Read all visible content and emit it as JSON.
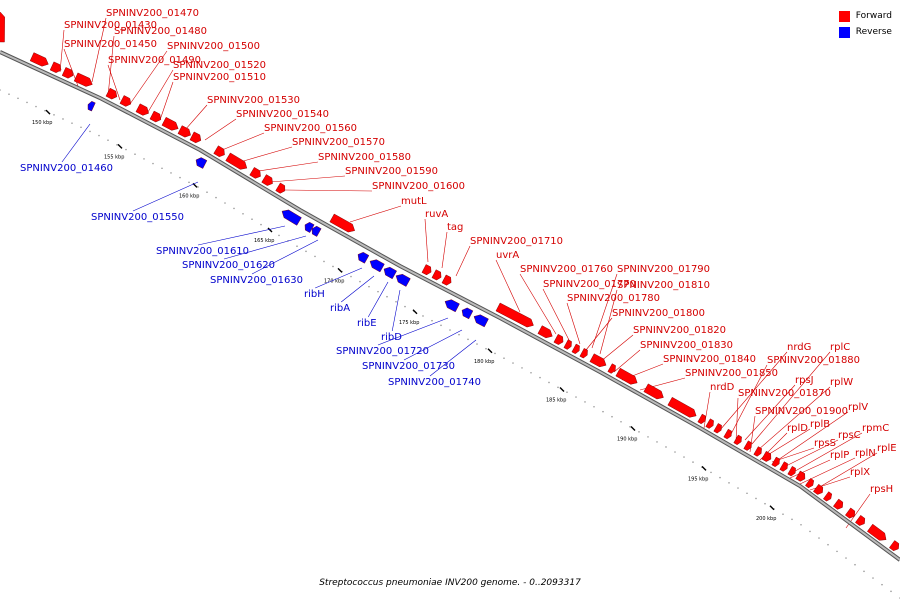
{
  "legend": {
    "forward_label": "Forward",
    "reverse_label": "Reverse",
    "forward_color": "#ff0000",
    "reverse_color": "#0000ff"
  },
  "caption": "Streptococcus pneumoniae INV200 genome. - 0..2093317",
  "colors": {
    "forward": "#ff0000",
    "forward_label": "#d40000",
    "reverse": "#0000ff",
    "reverse_label": "#0000cc",
    "backbone": "#808080",
    "axis": "#999999"
  },
  "ticks": [
    "150 kbp",
    "155 kbp",
    "160 kbp",
    "165 kbp",
    "170 kbp",
    "175 kbp",
    "180 kbp",
    "185 kbp",
    "190 kbp",
    "195 kbp",
    "200 kbp"
  ],
  "forward_genes": [
    "SPNINV200_01430",
    "SPNINV200_01470",
    "SPNINV200_01450",
    "SPNINV200_01480",
    "SPNINV200_01500",
    "SPNINV200_01490",
    "SPNINV200_01520",
    "SPNINV200_01510",
    "SPNINV200_01530",
    "SPNINV200_01540",
    "SPNINV200_01560",
    "SPNINV200_01570",
    "SPNINV200_01580",
    "SPNINV200_01590",
    "SPNINV200_01600",
    "mutL",
    "ruvA",
    "tag",
    "SPNINV200_01710",
    "uvrA",
    "SPNINV200_01760",
    "SPNINV200_01790",
    "SPNINV200_01770",
    "SPNINV200_01810",
    "SPNINV200_01780",
    "SPNINV200_01800",
    "SPNINV200_01820",
    "SPNINV200_01830",
    "SPNINV200_01840",
    "SPNINV200_01850",
    "nrdG",
    "rplC",
    "SPNINV200_01880",
    "rpsJ",
    "rplW",
    "nrdD",
    "SPNINV200_01870",
    "SPNINV200_01900",
    "rplV",
    "rplB",
    "rpmC",
    "rplD",
    "rpsC",
    "rpsS",
    "rplE",
    "rplP",
    "rplN",
    "rplX",
    "rpsH"
  ],
  "reverse_genes": [
    "SPNINV200_01460",
    "SPNINV200_01550",
    "SPNINV200_01610",
    "SPNINV200_01620",
    "SPNINV200_01630",
    "ribH",
    "ribA",
    "ribE",
    "ribD",
    "SPNINV200_01720",
    "SPNINV200_01730",
    "SPNINV200_01740"
  ]
}
